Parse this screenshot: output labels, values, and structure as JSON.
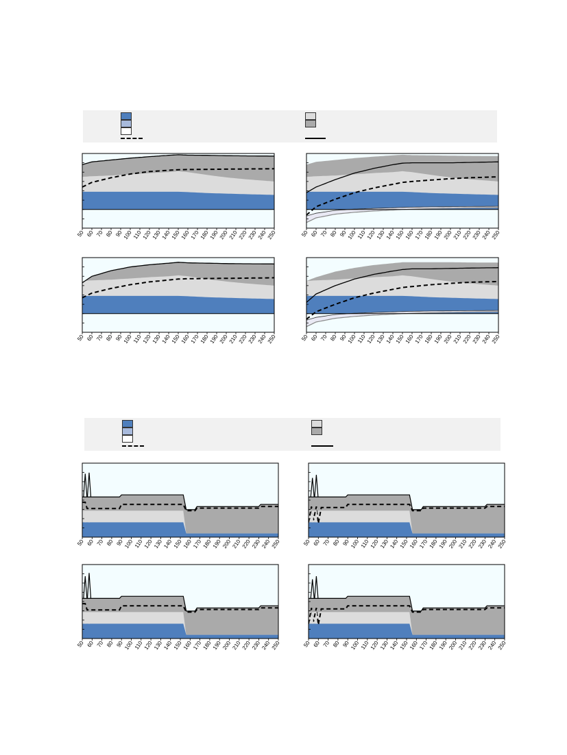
{
  "colors": {
    "blue": "#4f7fbd",
    "light_blue": "#a8badc",
    "light_gray": "#dcdcdc",
    "dark_gray": "#aaaaaa",
    "pale_lavender": "#e9e9f4",
    "plot_bg": "#f3fdff",
    "legend_bg": "#f1f1f1"
  },
  "legends": [
    {
      "items_left": [
        "swatch-blue",
        "swatch-light-blue",
        "swatch-white",
        "line-dashed"
      ],
      "items_right": [
        "swatch-light-gray",
        "swatch-dark-gray",
        "line-solid"
      ]
    },
    {
      "items_left": [
        "swatch-blue",
        "swatch-light-blue",
        "swatch-white",
        "line-dashed"
      ],
      "items_right": [
        "swatch-light-gray",
        "swatch-dark-gray",
        "line-solid"
      ]
    }
  ],
  "x_ticks": [
    "50",
    "60",
    "70",
    "80",
    "90",
    "100",
    "110",
    "120",
    "130",
    "140",
    "150",
    "160",
    "170",
    "180",
    "190",
    "200",
    "210",
    "220",
    "230",
    "240",
    "250"
  ],
  "chart_data": [
    {
      "type": "area",
      "panel": "top-left",
      "xlim": [
        50,
        250
      ],
      "ylim": [
        -1.0,
        3.0
      ],
      "grid": false,
      "x": [
        50,
        60,
        80,
        100,
        120,
        140,
        150,
        160,
        180,
        200,
        220,
        250
      ],
      "blue_area": [
        0.95,
        0.95,
        0.95,
        0.95,
        0.95,
        0.95,
        0.95,
        0.93,
        0.88,
        0.85,
        0.82,
        0.78
      ],
      "light_gray_area": [
        0.95,
        0.95,
        0.95,
        0.95,
        0.95,
        0.95,
        0.95,
        0.93,
        0.88,
        0.85,
        0.82,
        0.78
      ],
      "light_gray_top": [
        1.75,
        1.78,
        1.82,
        1.88,
        1.95,
        2.0,
        2.05,
        2.0,
        1.85,
        1.72,
        1.62,
        1.5
      ],
      "dark_gray_top": [
        2.4,
        2.55,
        2.65,
        2.75,
        2.83,
        2.9,
        2.93,
        2.91,
        2.9,
        2.88,
        2.87,
        2.86
      ],
      "dashed": [
        1.2,
        1.45,
        1.7,
        1.9,
        2.03,
        2.1,
        2.13,
        2.14,
        2.15,
        2.16,
        2.17,
        2.18
      ],
      "solid": [
        2.4,
        2.55,
        2.65,
        2.75,
        2.83,
        2.9,
        2.93,
        2.91,
        2.9,
        2.88,
        2.87,
        2.86
      ],
      "lower_band_top": [],
      "lower_band_bottom": []
    },
    {
      "type": "area",
      "panel": "top-right",
      "xlim": [
        50,
        250
      ],
      "ylim": [
        -1.0,
        3.0
      ],
      "grid": false,
      "x": [
        50,
        60,
        80,
        100,
        120,
        140,
        150,
        160,
        180,
        200,
        220,
        250
      ],
      "blue_area": [
        0.95,
        0.95,
        0.95,
        0.95,
        0.95,
        0.95,
        0.95,
        0.93,
        0.88,
        0.85,
        0.82,
        0.78
      ],
      "light_gray_area": [
        0.95,
        0.95,
        0.95,
        0.95,
        0.95,
        0.95,
        0.95,
        0.93,
        0.88,
        0.85,
        0.82,
        0.78
      ],
      "light_gray_top": [
        1.75,
        1.78,
        1.82,
        1.88,
        1.95,
        2.0,
        2.05,
        2.0,
        1.85,
        1.72,
        1.62,
        1.5
      ],
      "dark_gray_top": [
        2.4,
        2.55,
        2.65,
        2.75,
        2.83,
        2.9,
        2.93,
        2.91,
        2.9,
        2.88,
        2.87,
        2.86
      ],
      "dashed": [
        -0.3,
        0.15,
        0.55,
        0.9,
        1.15,
        1.35,
        1.45,
        1.5,
        1.58,
        1.65,
        1.7,
        1.75
      ],
      "solid": [
        0.9,
        1.2,
        1.6,
        1.95,
        2.2,
        2.4,
        2.48,
        2.5,
        2.5,
        2.5,
        2.52,
        2.55
      ],
      "lower_band_top": [
        -0.35,
        -0.2,
        -0.05,
        0.02,
        0.06,
        0.09,
        0.11,
        0.12,
        0.14,
        0.15,
        0.16,
        0.17
      ],
      "lower_band_bottom": [
        -0.7,
        -0.45,
        -0.25,
        -0.15,
        -0.08,
        -0.03,
        0.0,
        0.02,
        0.05,
        0.07,
        0.09,
        0.1
      ]
    },
    {
      "type": "area",
      "panel": "middle-left",
      "xlim": [
        50,
        250
      ],
      "ylim": [
        -1.0,
        3.0
      ],
      "grid": false,
      "x": [
        50,
        60,
        80,
        100,
        120,
        140,
        150,
        160,
        180,
        200,
        220,
        250
      ],
      "blue_area": [
        0.95,
        0.95,
        0.95,
        0.95,
        0.95,
        0.95,
        0.95,
        0.93,
        0.88,
        0.85,
        0.82,
        0.78
      ],
      "light_gray_area": [
        0.95,
        0.95,
        0.95,
        0.95,
        0.95,
        0.95,
        0.95,
        0.93,
        0.88,
        0.85,
        0.82,
        0.78
      ],
      "light_gray_top": [
        1.75,
        1.78,
        1.82,
        1.88,
        1.95,
        2.0,
        2.05,
        2.0,
        1.85,
        1.72,
        1.62,
        1.5
      ],
      "dark_gray_top": [
        1.65,
        2.0,
        2.3,
        2.5,
        2.62,
        2.7,
        2.75,
        2.72,
        2.7,
        2.68,
        2.67,
        2.66
      ],
      "dashed": [
        0.85,
        1.1,
        1.35,
        1.55,
        1.7,
        1.8,
        1.85,
        1.87,
        1.88,
        1.89,
        1.9,
        1.92
      ],
      "solid": [
        1.65,
        2.0,
        2.3,
        2.5,
        2.62,
        2.7,
        2.75,
        2.72,
        2.7,
        2.68,
        2.67,
        2.66
      ],
      "lower_band_top": [],
      "lower_band_bottom": []
    },
    {
      "type": "area",
      "panel": "middle-right",
      "xlim": [
        50,
        250
      ],
      "ylim": [
        -1.0,
        3.0
      ],
      "grid": false,
      "x": [
        50,
        60,
        80,
        100,
        120,
        140,
        150,
        160,
        180,
        200,
        220,
        250
      ],
      "blue_area": [
        0.95,
        0.95,
        0.95,
        0.95,
        0.95,
        0.95,
        0.95,
        0.93,
        0.88,
        0.85,
        0.82,
        0.78
      ],
      "light_gray_area": [
        0.95,
        0.95,
        0.95,
        0.95,
        0.95,
        0.95,
        0.95,
        0.93,
        0.88,
        0.85,
        0.82,
        0.78
      ],
      "light_gray_top": [
        1.75,
        1.78,
        1.82,
        1.88,
        1.95,
        2.0,
        2.05,
        2.0,
        1.85,
        1.72,
        1.62,
        1.5
      ],
      "dark_gray_top": [
        1.75,
        1.95,
        2.25,
        2.45,
        2.6,
        2.7,
        2.75,
        2.75,
        2.75,
        2.75,
        2.74,
        2.73
      ],
      "dashed": [
        -0.3,
        0.1,
        0.5,
        0.85,
        1.1,
        1.3,
        1.4,
        1.45,
        1.55,
        1.62,
        1.68,
        1.72
      ],
      "solid": [
        0.6,
        1.05,
        1.5,
        1.85,
        2.1,
        2.28,
        2.36,
        2.4,
        2.4,
        2.42,
        2.44,
        2.46
      ],
      "lower_band_top": [
        -0.35,
        -0.2,
        -0.05,
        0.02,
        0.06,
        0.09,
        0.11,
        0.12,
        0.14,
        0.15,
        0.16,
        0.17
      ],
      "lower_band_bottom": [
        -0.7,
        -0.45,
        -0.25,
        -0.15,
        -0.08,
        -0.03,
        0.0,
        0.02,
        0.05,
        0.07,
        0.09,
        0.1
      ]
    },
    {
      "type": "area",
      "panel": "bottom-1",
      "xlim": [
        50,
        250
      ],
      "ylim": [
        0,
        7
      ],
      "blue_level": [
        [
          50,
          1.4
        ],
        [
          153,
          1.4
        ],
        [
          156,
          0.35
        ],
        [
          250,
          0.35
        ]
      ],
      "light_gray_level": [
        [
          50,
          2.5
        ],
        [
          153,
          2.5
        ],
        [
          156,
          0.35
        ],
        [
          250,
          0.35
        ]
      ],
      "dark_gray_level": [
        [
          50,
          3.8
        ],
        [
          88,
          3.8
        ],
        [
          90,
          4.0
        ],
        [
          153,
          4.0
        ],
        [
          156,
          2.6
        ],
        [
          165,
          2.6
        ],
        [
          167,
          2.9
        ],
        [
          230,
          2.9
        ],
        [
          232,
          3.1
        ],
        [
          250,
          3.1
        ]
      ],
      "dashed_level": [
        [
          50,
          3.3
        ],
        [
          53,
          3.3
        ],
        [
          55,
          2.7
        ],
        [
          88,
          2.7
        ],
        [
          90,
          3.1
        ],
        [
          153,
          3.1
        ],
        [
          156,
          2.5
        ],
        [
          165,
          2.5
        ],
        [
          167,
          2.75
        ],
        [
          230,
          2.75
        ],
        [
          232,
          2.9
        ],
        [
          250,
          2.9
        ]
      ],
      "spikes": [
        [
          53,
          6.0
        ],
        [
          57,
          6.1
        ]
      ]
    },
    {
      "type": "area",
      "panel": "bottom-2",
      "xlim": [
        50,
        250
      ],
      "ylim": [
        0,
        7
      ],
      "blue_level": [
        [
          50,
          1.4
        ],
        [
          153,
          1.4
        ],
        [
          156,
          0.35
        ],
        [
          250,
          0.35
        ]
      ],
      "light_gray_level": [
        [
          50,
          2.5
        ],
        [
          153,
          2.5
        ],
        [
          156,
          0.35
        ],
        [
          250,
          0.35
        ]
      ],
      "dark_gray_level": [
        [
          50,
          3.8
        ],
        [
          88,
          3.8
        ],
        [
          90,
          4.0
        ],
        [
          153,
          4.0
        ],
        [
          156,
          2.6
        ],
        [
          165,
          2.6
        ],
        [
          167,
          2.9
        ],
        [
          230,
          2.9
        ],
        [
          232,
          3.1
        ],
        [
          250,
          3.1
        ]
      ],
      "dashed_level": [
        [
          50,
          1.4
        ],
        [
          53,
          2.9
        ],
        [
          55,
          1.6
        ],
        [
          58,
          2.9
        ],
        [
          60,
          1.3
        ],
        [
          63,
          2.8
        ],
        [
          88,
          2.8
        ],
        [
          90,
          3.1
        ],
        [
          153,
          3.1
        ],
        [
          156,
          2.5
        ],
        [
          165,
          2.5
        ],
        [
          167,
          2.75
        ],
        [
          230,
          2.75
        ],
        [
          232,
          2.9
        ],
        [
          250,
          2.9
        ]
      ],
      "spikes": [
        [
          54,
          5.6
        ],
        [
          58,
          5.9
        ]
      ]
    },
    {
      "type": "area",
      "panel": "bottom-3",
      "xlim": [
        50,
        250
      ],
      "ylim": [
        0,
        7
      ],
      "blue_level": [
        [
          50,
          1.4
        ],
        [
          153,
          1.4
        ],
        [
          156,
          0.35
        ],
        [
          250,
          0.35
        ]
      ],
      "light_gray_level": [
        [
          50,
          2.5
        ],
        [
          153,
          2.5
        ],
        [
          156,
          0.35
        ],
        [
          250,
          0.35
        ]
      ],
      "dark_gray_level": [
        [
          50,
          3.8
        ],
        [
          88,
          3.8
        ],
        [
          90,
          4.0
        ],
        [
          153,
          4.0
        ],
        [
          156,
          2.6
        ],
        [
          165,
          2.6
        ],
        [
          167,
          2.9
        ],
        [
          230,
          2.9
        ],
        [
          232,
          3.1
        ],
        [
          250,
          3.1
        ]
      ],
      "dashed_level": [
        [
          50,
          3.3
        ],
        [
          53,
          3.3
        ],
        [
          55,
          2.7
        ],
        [
          88,
          2.7
        ],
        [
          90,
          3.1
        ],
        [
          153,
          3.1
        ],
        [
          156,
          2.5
        ],
        [
          165,
          2.5
        ],
        [
          167,
          2.75
        ],
        [
          230,
          2.75
        ],
        [
          232,
          2.9
        ],
        [
          250,
          2.9
        ]
      ],
      "spikes": [
        [
          53,
          5.9
        ],
        [
          57,
          6.2
        ]
      ]
    },
    {
      "type": "area",
      "panel": "bottom-4",
      "xlim": [
        50,
        250
      ],
      "ylim": [
        0,
        7
      ],
      "blue_level": [
        [
          50,
          1.4
        ],
        [
          153,
          1.4
        ],
        [
          156,
          0.35
        ],
        [
          250,
          0.35
        ]
      ],
      "light_gray_level": [
        [
          50,
          2.5
        ],
        [
          153,
          2.5
        ],
        [
          156,
          0.35
        ],
        [
          250,
          0.35
        ]
      ],
      "dark_gray_level": [
        [
          50,
          3.8
        ],
        [
          88,
          3.8
        ],
        [
          90,
          4.0
        ],
        [
          153,
          4.0
        ],
        [
          156,
          2.6
        ],
        [
          165,
          2.6
        ],
        [
          167,
          2.9
        ],
        [
          230,
          2.9
        ],
        [
          232,
          3.1
        ],
        [
          250,
          3.1
        ]
      ],
      "dashed_level": [
        [
          50,
          1.4
        ],
        [
          53,
          2.9
        ],
        [
          55,
          1.6
        ],
        [
          58,
          2.9
        ],
        [
          60,
          1.3
        ],
        [
          63,
          2.8
        ],
        [
          88,
          2.8
        ],
        [
          90,
          3.1
        ],
        [
          153,
          3.1
        ],
        [
          156,
          2.5
        ],
        [
          165,
          2.5
        ],
        [
          167,
          2.75
        ],
        [
          230,
          2.75
        ],
        [
          232,
          2.9
        ],
        [
          250,
          2.9
        ]
      ],
      "spikes": [
        [
          54,
          5.6
        ],
        [
          58,
          5.9
        ]
      ]
    }
  ]
}
